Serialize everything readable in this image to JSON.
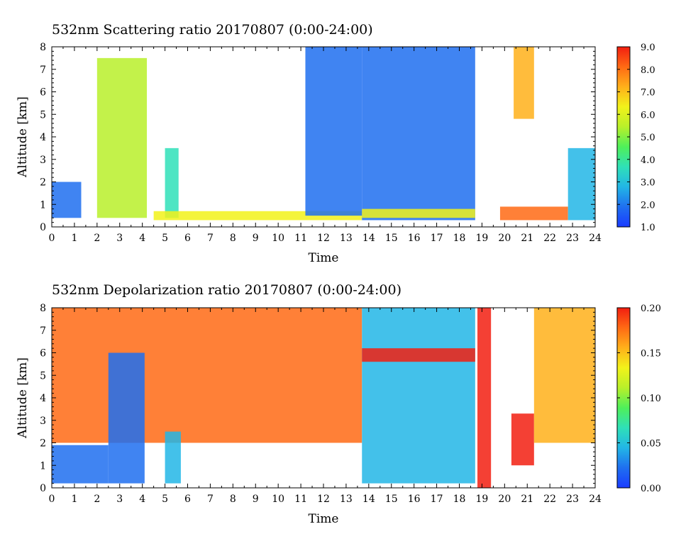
{
  "colors": {
    "colormap": [
      "#1a3cff",
      "#1f6ff0",
      "#22b6e6",
      "#2fe0b8",
      "#4ff05a",
      "#b8f02a",
      "#f2f21a",
      "#ffb01a",
      "#ff6a14",
      "#f21e10"
    ]
  },
  "chart_data": [
    {
      "type": "heatmap",
      "title": "532nm Scattering ratio  20170807 (0:00-24:00)",
      "xlabel": "Time",
      "ylabel": "Altitude [km]",
      "xlim": [
        0,
        24
      ],
      "ylim": [
        0,
        8
      ],
      "xticks": [
        "0",
        "1",
        "2",
        "3",
        "4",
        "5",
        "6",
        "7",
        "8",
        "9",
        "10",
        "11",
        "12",
        "13",
        "14",
        "15",
        "16",
        "17",
        "18",
        "19",
        "20",
        "21",
        "22",
        "23",
        "24"
      ],
      "yticks": [
        "0",
        "1",
        "2",
        "3",
        "4",
        "5",
        "6",
        "7",
        "8"
      ],
      "colorbar": {
        "range": [
          1.0,
          9.0
        ],
        "ticks": [
          "1.0",
          "2.0",
          "3.0",
          "4.0",
          "5.0",
          "6.0",
          "7.0",
          "8.0",
          "9.0"
        ]
      },
      "features": [
        {
          "time": [
            0,
            1.3
          ],
          "altitude": [
            0.4,
            2.0
          ],
          "level": 2.3
        },
        {
          "time": [
            2.0,
            4.2
          ],
          "altitude": [
            0.4,
            7.5
          ],
          "level": 5.5
        },
        {
          "time": [
            5.0,
            5.6
          ],
          "altitude": [
            0.4,
            3.5
          ],
          "level": 3.5
        },
        {
          "time": [
            4.5,
            13.7
          ],
          "altitude": [
            0.3,
            0.7
          ],
          "level": 6.0
        },
        {
          "time": [
            11.2,
            13.7
          ],
          "altitude": [
            0.5,
            8.0
          ],
          "level": 2.0
        },
        {
          "time": [
            13.7,
            18.7
          ],
          "altitude": [
            0.3,
            8.0
          ],
          "level": 2.2
        },
        {
          "time": [
            13.7,
            18.7
          ],
          "altitude": [
            0.4,
            0.8
          ],
          "level": 6.5
        },
        {
          "time": [
            20.4,
            21.3
          ],
          "altitude": [
            4.8,
            8.0
          ],
          "level": 7.5
        },
        {
          "time": [
            19.8,
            22.8
          ],
          "altitude": [
            0.3,
            0.9
          ],
          "level": 8.0
        },
        {
          "time": [
            22.8,
            24.0
          ],
          "altitude": [
            0.3,
            3.5
          ],
          "level": 2.5
        }
      ]
    },
    {
      "type": "heatmap",
      "title": "532nm Depolarization ratio  20170807 (0:00-24:00)",
      "xlabel": "Time",
      "ylabel": "Altitude [km]",
      "xlim": [
        0,
        24
      ],
      "ylim": [
        0,
        8
      ],
      "xticks": [
        "0",
        "1",
        "2",
        "3",
        "4",
        "5",
        "6",
        "7",
        "8",
        "9",
        "10",
        "11",
        "12",
        "13",
        "14",
        "15",
        "16",
        "17",
        "18",
        "19",
        "20",
        "21",
        "22",
        "23",
        "24"
      ],
      "yticks": [
        "0",
        "1",
        "2",
        "3",
        "4",
        "5",
        "6",
        "7",
        "8"
      ],
      "colorbar": {
        "range": [
          0.0,
          0.2
        ],
        "ticks": [
          "0.00",
          "0.05",
          "0.10",
          "0.15",
          "0.20"
        ]
      },
      "features": [
        {
          "time": [
            0,
            13.7
          ],
          "altitude": [
            2.0,
            8.0
          ],
          "level": 0.18
        },
        {
          "time": [
            0,
            2.5
          ],
          "altitude": [
            0.2,
            1.9
          ],
          "level": 0.02
        },
        {
          "time": [
            2.5,
            4.1
          ],
          "altitude": [
            0.2,
            6.0
          ],
          "level": 0.03
        },
        {
          "time": [
            5.0,
            5.7
          ],
          "altitude": [
            0.2,
            2.5
          ],
          "level": 0.04
        },
        {
          "time": [
            13.7,
            18.7
          ],
          "altitude": [
            0.2,
            8.0
          ],
          "level": 0.04
        },
        {
          "time": [
            13.7,
            18.7
          ],
          "altitude": [
            5.6,
            6.2
          ],
          "level": 0.19
        },
        {
          "time": [
            18.8,
            19.4
          ],
          "altitude": [
            0.0,
            8.0
          ],
          "level": 0.19
        },
        {
          "time": [
            20.3,
            21.3
          ],
          "altitude": [
            1.0,
            3.3
          ],
          "level": 0.2
        },
        {
          "time": [
            21.3,
            24.0
          ],
          "altitude": [
            2.0,
            8.0
          ],
          "level": 0.15
        }
      ]
    }
  ]
}
